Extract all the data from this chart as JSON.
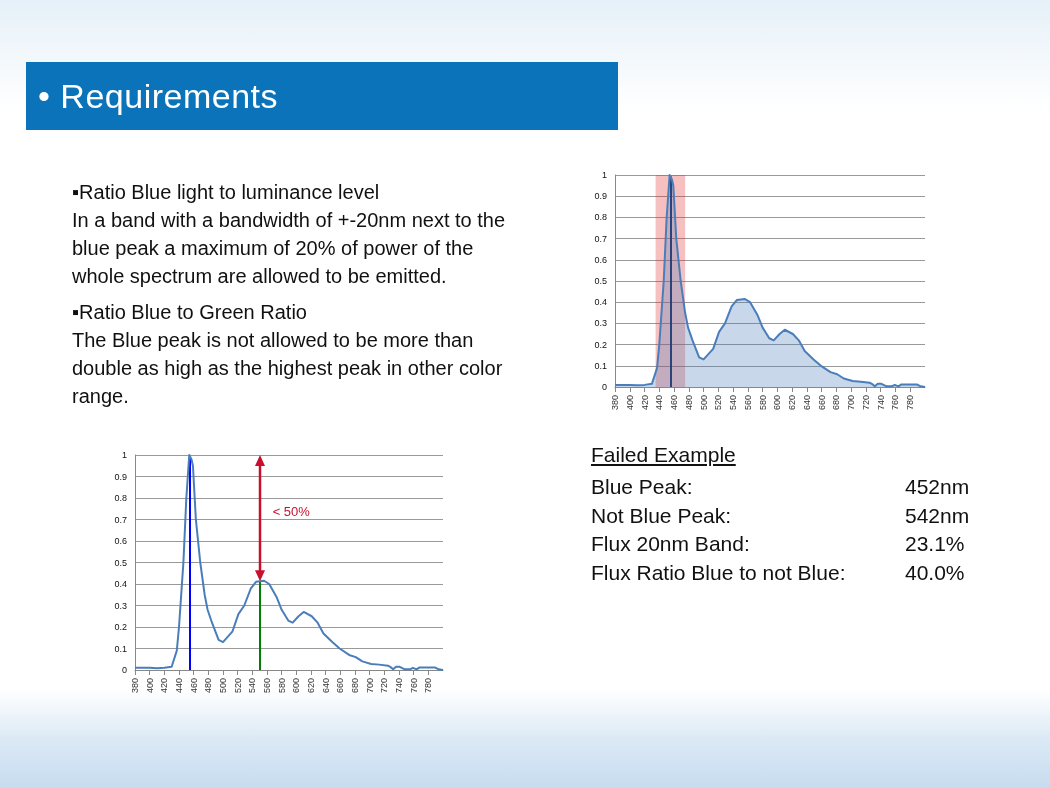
{
  "chart_data": [
    {
      "type": "area",
      "annotations": [
        "• Requirements",
        "▪Ratio Blue light to luminance level",
        "In a band with a bandwidth of +-20nm next to the blue peak a maximum of 20% of power of the whole spectrum are allowed to be emitted.",
        "▪Ratio Blue to Green Ratio",
        "The Blue peak is not allowed to be more than double as high as the highest peak in other color range.",
        "Failed Example",
        "Blue Peak:",
        "452nm",
        "Not Blue Peak:",
        "542nm",
        "Flux 20nm Band:",
        "23.1%",
        "Flux Ratio Blue to not Blue:",
        "40.0%"
      ],
      "series": [
        {
          "color": "#4a7ebb",
          "x": [
            380,
            400,
            410,
            420,
            430,
            437,
            440,
            446,
            450,
            454,
            457,
            459,
            463,
            469,
            475,
            479,
            485,
            494,
            500,
            513,
            521,
            529,
            538,
            545,
            556,
            563,
            573,
            580,
            589,
            595,
            603,
            610,
            621,
            629,
            637,
            649,
            659,
            672,
            681,
            690,
            702,
            713,
            725,
            728,
            732,
            736,
            741,
            748,
            755,
            759,
            764,
            768,
            789,
            794,
            800
          ],
          "values": [
            0.01,
            0.01,
            0.008,
            0.01,
            0.015,
            0.09,
            0.2,
            0.5,
            0.8,
            1.0,
            0.98,
            0.95,
            0.7,
            0.5,
            0.35,
            0.28,
            0.22,
            0.14,
            0.13,
            0.18,
            0.26,
            0.3,
            0.38,
            0.41,
            0.415,
            0.4,
            0.34,
            0.28,
            0.23,
            0.22,
            0.25,
            0.27,
            0.25,
            0.22,
            0.17,
            0.13,
            0.1,
            0.07,
            0.06,
            0.04,
            0.028,
            0.025,
            0.02,
            0.015,
            0.003,
            0.015,
            0.015,
            0.003,
            0.003,
            0.01,
            0.003,
            0.012,
            0.012,
            0.003,
            0
          ]
        }
      ],
      "bands": [
        {
          "axis": "x",
          "from": 435,
          "to": 475,
          "color": "#e03030"
        }
      ],
      "ref_lines": [
        {
          "axis": "x",
          "value": 455,
          "color": "#1f2a5f"
        }
      ],
      "xlim": [
        380,
        800
      ],
      "xticks": [
        380,
        400,
        420,
        440,
        460,
        480,
        500,
        520,
        540,
        560,
        580,
        600,
        620,
        640,
        660,
        680,
        700,
        720,
        740,
        760,
        780
      ],
      "ylim": [
        0,
        1
      ],
      "yticks": [
        0,
        0.1,
        0.2,
        0.3,
        0.4,
        0.5,
        0.6,
        0.7,
        0.8,
        0.9,
        1
      ],
      "grid": "y",
      "marker": "none"
    },
    {
      "type": "line",
      "annotations": [
        "< 50%"
      ],
      "series": [
        {
          "color": "#4a7ebb",
          "x": [
            380,
            400,
            410,
            420,
            430,
            437,
            440,
            446,
            450,
            454,
            457,
            459,
            463,
            469,
            475,
            479,
            485,
            494,
            500,
            513,
            521,
            529,
            538,
            545,
            556,
            563,
            573,
            580,
            589,
            595,
            603,
            610,
            621,
            629,
            637,
            649,
            659,
            672,
            681,
            690,
            702,
            713,
            725,
            728,
            732,
            736,
            741,
            748,
            755,
            759,
            764,
            768,
            789,
            794,
            800
          ],
          "values": [
            0.01,
            0.01,
            0.008,
            0.01,
            0.015,
            0.09,
            0.2,
            0.5,
            0.8,
            1.0,
            0.98,
            0.95,
            0.7,
            0.5,
            0.35,
            0.28,
            0.22,
            0.14,
            0.13,
            0.18,
            0.26,
            0.3,
            0.38,
            0.41,
            0.415,
            0.4,
            0.34,
            0.28,
            0.23,
            0.22,
            0.25,
            0.27,
            0.25,
            0.22,
            0.17,
            0.13,
            0.1,
            0.07,
            0.06,
            0.04,
            0.028,
            0.025,
            0.02,
            0.015,
            0.003,
            0.015,
            0.015,
            0.003,
            0.003,
            0.01,
            0.003,
            0.012,
            0.012,
            0.003,
            0
          ]
        }
      ],
      "ref_lines": [
        {
          "axis": "x",
          "value": 455,
          "color": "#0000ff"
        },
        {
          "axis": "x",
          "value": 550,
          "color": "#008000"
        }
      ],
      "xlim": [
        380,
        800
      ],
      "xticks": [
        380,
        400,
        420,
        440,
        460,
        480,
        500,
        520,
        540,
        560,
        580,
        600,
        620,
        640,
        660,
        680,
        700,
        720,
        740,
        760,
        780
      ],
      "ylim": [
        0,
        1
      ],
      "yticks": [
        0,
        0.1,
        0.2,
        0.3,
        0.4,
        0.5,
        0.6,
        0.7,
        0.8,
        0.9,
        1
      ],
      "grid": "y",
      "marker": "none"
    }
  ]
}
